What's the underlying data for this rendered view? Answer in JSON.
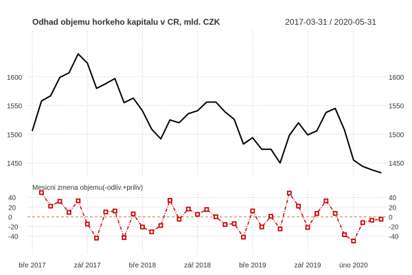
{
  "chart_data": [
    {
      "type": "line",
      "title": "Odhad objemu horkeho kapitalu v CR, mld. CZK",
      "date_range": "2017-03-31 / 2020-05-31",
      "colors": {
        "series": "#000000"
      },
      "grid": true,
      "yticks": [
        1450,
        1500,
        1550,
        1600
      ],
      "ylim": [
        1425,
        1650
      ],
      "x_tick_labels": [
        "bře 2017",
        "zář 2017",
        "bře 2018",
        "zář 2018",
        "bře 2019",
        "zář 2019",
        "úno 2020"
      ],
      "x": [
        "2017-03",
        "2017-04",
        "2017-05",
        "2017-06",
        "2017-07",
        "2017-08",
        "2017-09",
        "2017-10",
        "2017-11",
        "2017-12",
        "2018-01",
        "2018-02",
        "2018-03",
        "2018-04",
        "2018-05",
        "2018-06",
        "2018-07",
        "2018-08",
        "2018-09",
        "2018-10",
        "2018-11",
        "2018-12",
        "2019-01",
        "2019-02",
        "2019-03",
        "2019-04",
        "2019-05",
        "2019-06",
        "2019-07",
        "2019-08",
        "2019-09",
        "2019-10",
        "2019-11",
        "2019-12",
        "2020-01",
        "2020-02",
        "2020-03",
        "2020-04",
        "2020-05"
      ],
      "values": [
        1506,
        1558,
        1567,
        1599,
        1607,
        1640,
        1624,
        1580,
        1588,
        1597,
        1555,
        1563,
        1541,
        1509,
        1492,
        1525,
        1520,
        1536,
        1541,
        1556,
        1556,
        1539,
        1526,
        1483,
        1494,
        1474,
        1474,
        1450,
        1498,
        1520,
        1499,
        1506,
        1538,
        1545,
        1508,
        1455,
        1444,
        1438,
        1433
      ]
    },
    {
      "type": "line",
      "title": "Mesicni zmena objemu(-odliv.+priliv)",
      "colors": {
        "series": "#cc0000",
        "zero_line": "#c87a3c"
      },
      "grid": true,
      "yticks": [
        -40,
        -20,
        0,
        20,
        40
      ],
      "ylim": [
        -52,
        53
      ],
      "values": [
        50,
        22,
        32,
        9,
        33,
        -15,
        -44,
        10,
        12,
        -43,
        6,
        -21,
        -31,
        -18,
        34,
        -5,
        16,
        5,
        15,
        0,
        -16,
        -14,
        -42,
        12,
        -21,
        1,
        -25,
        49,
        22,
        -22,
        7,
        33,
        7,
        -37,
        -50,
        -12,
        -7,
        -5
      ]
    }
  ]
}
